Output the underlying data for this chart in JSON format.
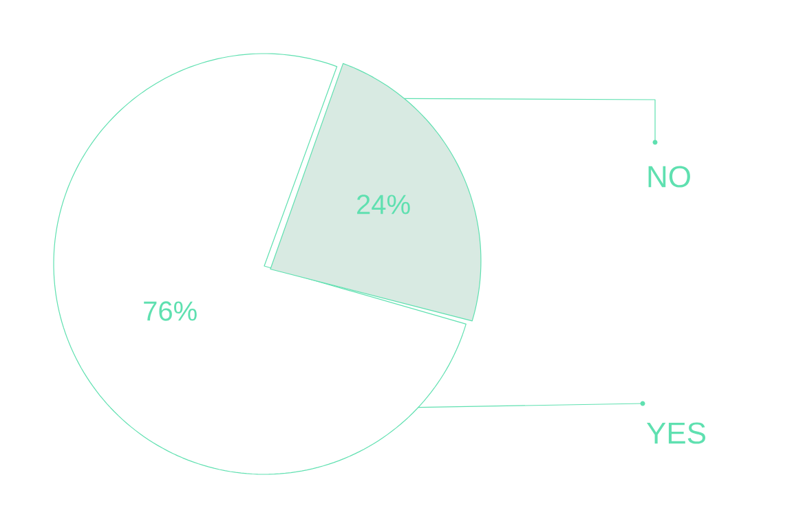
{
  "chart_data": {
    "type": "pie",
    "categories": [
      "YES",
      "NO"
    ],
    "values": [
      76,
      24
    ],
    "colors": [
      "#ffffff",
      "#d8eae2"
    ],
    "value_labels": [
      "76%",
      "24%"
    ]
  }
}
